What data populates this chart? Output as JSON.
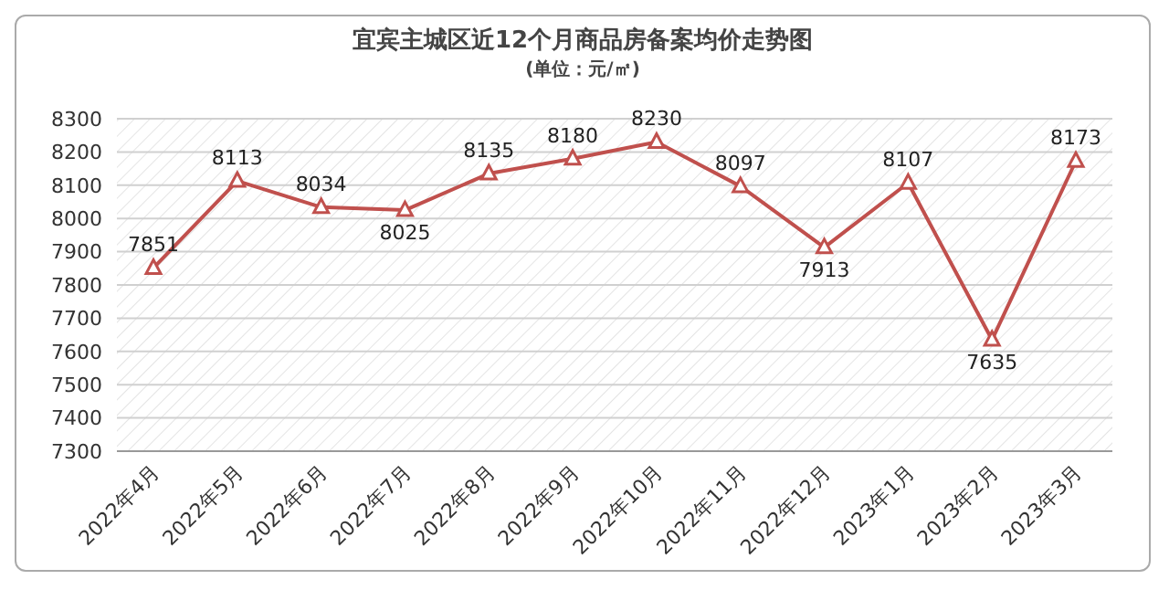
{
  "chart_data": {
    "type": "line",
    "title": "宜宾主城区近12个月商品房备案均价走势图",
    "subtitle": "(单位：元/㎡)",
    "categories": [
      "2022年4月",
      "2022年5月",
      "2022年6月",
      "2022年7月",
      "2022年8月",
      "2022年9月",
      "2022年10月",
      "2022年11月",
      "2022年12月",
      "2023年1月",
      "2023年2月",
      "2023年3月"
    ],
    "series": [
      {
        "color": "#c0504d",
        "values": [
          7851,
          8113,
          8034,
          8025,
          8135,
          8180,
          8230,
          8097,
          7913,
          8107,
          7635,
          8173
        ]
      }
    ],
    "ylim": [
      7300,
      8300
    ],
    "yticks": [
      7300,
      7400,
      7500,
      7600,
      7700,
      7800,
      7900,
      8000,
      8100,
      8200,
      8300
    ],
    "grid": "y",
    "marker": "triangle",
    "data_labels": true,
    "legend": false
  }
}
